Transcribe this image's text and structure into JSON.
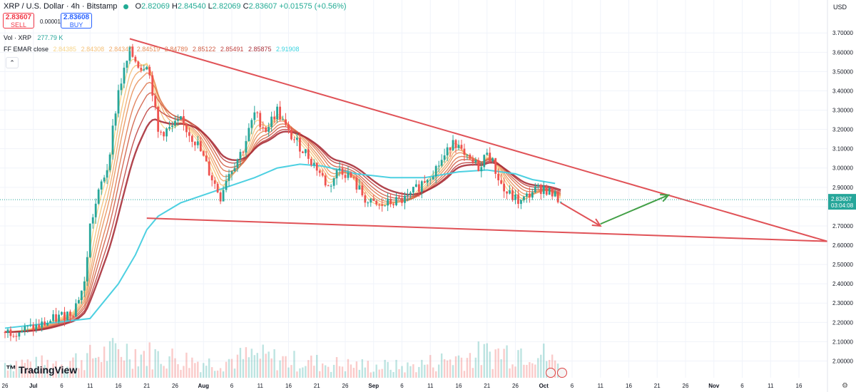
{
  "header": {
    "symbol": "XRP / U.S. Dollar · 4h · Bitstamp",
    "open_label": "O",
    "open": "2.82069",
    "high_label": "H",
    "high": "2.84540",
    "low_label": "L",
    "low": "2.82069",
    "close_label": "C",
    "close": "2.83607",
    "change": "+0.01575 (+0.56%)"
  },
  "trade": {
    "sell_price": "2.83607",
    "sell_label": "SELL",
    "spread": "0.00001",
    "buy_price": "2.83608",
    "buy_label": "BUY"
  },
  "indicators": {
    "vol_label": "Vol · XRP",
    "vol_value": "277.79 K",
    "emar_label": "FF EMAR close",
    "emar_values": [
      "2.84385",
      "2.84308",
      "2.84347",
      "2.84519",
      "2.84789",
      "2.85122",
      "2.85491",
      "2.85875",
      "2.91908"
    ],
    "emar_colors": [
      "#f7d58b",
      "#f5c27a",
      "#f0aa6a",
      "#e8915b",
      "#df784f",
      "#d05e46",
      "#c04440",
      "#a8303a",
      "#3bd3e0"
    ]
  },
  "price_axis": {
    "currency": "USD",
    "current_price": "2.83607",
    "countdown": "03:04:08"
  },
  "branding": {
    "logo_text": "TradingView"
  },
  "colors": {
    "trendline": "#e05257",
    "arrow_down": "#e05257",
    "arrow_up": "#43a047",
    "ema_long": "#4dd0e1",
    "candle_up": "#26a69a",
    "candle_down": "#ef5350",
    "price_label_bg": "#26a69a"
  },
  "chart_data": {
    "type": "candlestick",
    "x_ticks": [
      "26",
      "Jul",
      "6",
      "11",
      "16",
      "21",
      "26",
      "Aug",
      "6",
      "11",
      "16",
      "21",
      "26",
      "Sep",
      "6",
      "11",
      "16",
      "21",
      "26",
      "Oct",
      "6",
      "11",
      "16",
      "21",
      "26",
      "Nov",
      "6",
      "11",
      "16"
    ],
    "y_ticks": [
      "3.70000",
      "3.60000",
      "3.50000",
      "3.40000",
      "3.30000",
      "3.20000",
      "3.10000",
      "3.00000",
      "2.90000",
      "2.80000",
      "2.70000",
      "2.60000",
      "2.50000",
      "2.40000",
      "2.30000",
      "2.20000",
      "2.10000",
      "2.00000"
    ],
    "ylim": [
      1.95,
      3.76
    ],
    "grid": true,
    "price_path": [
      [
        "Jun 26",
        2.15
      ],
      [
        "Jun 29",
        2.16
      ],
      [
        "Jul 2",
        2.18
      ],
      [
        "Jul 5",
        2.22
      ],
      [
        "Jul 8",
        2.26
      ],
      [
        "Jul 10",
        2.4
      ],
      [
        "Jul 11",
        2.7
      ],
      [
        "Jul 13",
        2.92
      ],
      [
        "Jul 14",
        3.0
      ],
      [
        "Jul 16",
        3.4
      ],
      [
        "Jul 18",
        3.6
      ],
      [
        "Jul 20",
        3.52
      ],
      [
        "Jul 21",
        3.55
      ],
      [
        "Jul 22",
        3.4
      ],
      [
        "Jul 23",
        3.18
      ],
      [
        "Jul 25",
        3.2
      ],
      [
        "Jul 27",
        3.24
      ],
      [
        "Jul 30",
        3.12
      ],
      [
        "Aug 1",
        2.98
      ],
      [
        "Aug 3",
        2.85
      ],
      [
        "Aug 4",
        2.95
      ],
      [
        "Aug 5",
        3.0
      ],
      [
        "Aug 7",
        3.1
      ],
      [
        "Aug 9",
        3.28
      ],
      [
        "Aug 11",
        3.2
      ],
      [
        "Aug 13",
        3.3
      ],
      [
        "Aug 15",
        3.18
      ],
      [
        "Aug 18",
        3.08
      ],
      [
        "Aug 20",
        3.0
      ],
      [
        "Aug 22",
        2.9
      ],
      [
        "Aug 24",
        3.0
      ],
      [
        "Aug 26",
        2.95
      ],
      [
        "Aug 29",
        2.82
      ],
      [
        "Aug 31",
        2.8
      ],
      [
        "Sep 2",
        2.82
      ],
      [
        "Sep 5",
        2.84
      ],
      [
        "Sep 8",
        2.94
      ],
      [
        "Sep 10",
        3.0
      ],
      [
        "Sep 12",
        3.08
      ],
      [
        "Sep 13",
        3.16
      ],
      [
        "Sep 15",
        3.05
      ],
      [
        "Sep 18",
        3.0
      ],
      [
        "Sep 19",
        3.1
      ],
      [
        "Sep 21",
        2.95
      ],
      [
        "Sep 22",
        2.88
      ],
      [
        "Sep 25",
        2.82
      ],
      [
        "Sep 27",
        2.88
      ],
      [
        "Sep 29",
        2.9
      ],
      [
        "Oct 1",
        2.85
      ],
      [
        "Oct 2",
        2.836
      ]
    ],
    "ema_long_path": [
      [
        "Jun 26",
        2.17
      ],
      [
        "Jul 5",
        2.2
      ],
      [
        "Jul 11",
        2.22
      ],
      [
        "Jul 16",
        2.4
      ],
      [
        "Jul 19",
        2.55
      ],
      [
        "Jul 21",
        2.68
      ],
      [
        "Jul 23",
        2.75
      ],
      [
        "Jul 27",
        2.82
      ],
      [
        "Aug 1",
        2.87
      ],
      [
        "Aug 5",
        2.91
      ],
      [
        "Aug 9",
        2.95
      ],
      [
        "Aug 13",
        3.0
      ],
      [
        "Aug 17",
        3.02
      ],
      [
        "Aug 21",
        3.01
      ],
      [
        "Aug 27",
        2.97
      ],
      [
        "Sep 2",
        2.95
      ],
      [
        "Sep 8",
        2.95
      ],
      [
        "Sep 14",
        2.98
      ],
      [
        "Sep 19",
        2.99
      ],
      [
        "Sep 24",
        2.97
      ],
      [
        "Sep 27",
        2.94
      ],
      [
        "Oct 1",
        2.92
      ]
    ],
    "volume_path": [
      [
        "Jul 1",
        0.3
      ],
      [
        "Jul 10",
        0.45
      ],
      [
        "Jul 17",
        0.65
      ],
      [
        "Jul 21",
        0.55
      ],
      [
        "Aug 1",
        0.35
      ],
      [
        "Aug 9",
        0.5
      ],
      [
        "Aug 15",
        0.4
      ],
      [
        "Aug 25",
        0.3
      ],
      [
        "Sep 5",
        0.25
      ],
      [
        "Sep 13",
        0.45
      ],
      [
        "Sep 22",
        0.6
      ],
      [
        "Sep 27",
        0.7
      ],
      [
        "Oct 1",
        0.35
      ]
    ],
    "annotations": [
      {
        "type": "trendline",
        "from": [
          "Jul 18",
          3.67
        ],
        "to": [
          "Nov 18",
          2.62
        ]
      },
      {
        "type": "trendline",
        "from": [
          "Jul 21",
          2.74
        ],
        "to": [
          "Nov 18",
          2.62
        ]
      },
      {
        "type": "arrow",
        "color": "down",
        "from": [
          "Oct 2",
          2.82
        ],
        "to": [
          "Oct 9",
          2.7
        ]
      },
      {
        "type": "arrow",
        "color": "up",
        "from": [
          "Oct 9",
          2.71
        ],
        "to": [
          "Oct 21",
          2.86
        ]
      }
    ]
  }
}
